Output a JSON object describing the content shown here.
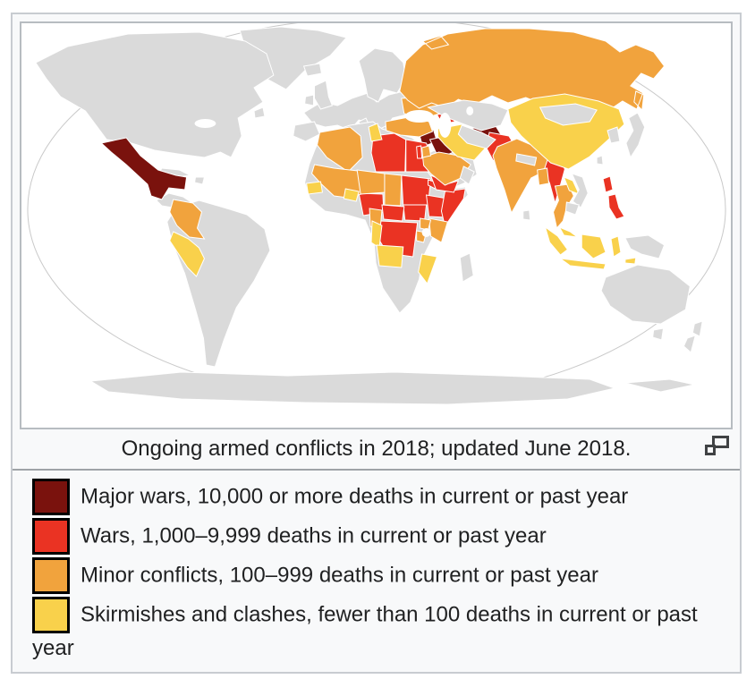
{
  "thumbnail": {
    "border_color": "#c8ccd1",
    "background": "#f8f9fa",
    "caption": "Ongoing armed conflicts in 2018; updated June 2018.",
    "magnify_icon": "expand-thumbnail-icon"
  },
  "map": {
    "description": "World choropleth map of ongoing armed conflicts in 2018",
    "ocean_color": "#ffffff",
    "land_color": "#dadada",
    "country_border_color": "#ffffff",
    "projection_outline_color": "#c9c9c9",
    "categories": {
      "major_wars": {
        "color": "#7a120d"
      },
      "wars": {
        "color": "#ea3323"
      },
      "minor_conflicts": {
        "color": "#f1a33d"
      },
      "skirmishes": {
        "color": "#f9d14b"
      }
    },
    "regions": [
      {
        "key": "mexico",
        "name": "Mexico",
        "category": "major_wars"
      },
      {
        "key": "syria",
        "name": "Syria",
        "category": "major_wars"
      },
      {
        "key": "iraq",
        "name": "Iraq",
        "category": "major_wars"
      },
      {
        "key": "afghanistan",
        "name": "Afghanistan",
        "category": "major_wars"
      },
      {
        "key": "libya",
        "name": "Libya",
        "category": "wars"
      },
      {
        "key": "egypt",
        "name": "Egypt",
        "category": "wars"
      },
      {
        "key": "sudan",
        "name": "Sudan",
        "category": "wars"
      },
      {
        "key": "south_sudan",
        "name": "South Sudan",
        "category": "wars"
      },
      {
        "key": "eritrea",
        "name": "Eritrea",
        "category": "wars"
      },
      {
        "key": "ethiopia",
        "name": "Ethiopia",
        "category": "wars"
      },
      {
        "key": "somalia",
        "name": "Somalia",
        "category": "wars"
      },
      {
        "key": "yemen",
        "name": "Yemen",
        "category": "wars"
      },
      {
        "key": "nigeria",
        "name": "Nigeria",
        "category": "wars"
      },
      {
        "key": "car",
        "name": "Central African Republic",
        "category": "wars"
      },
      {
        "key": "drc",
        "name": "DR Congo",
        "category": "wars"
      },
      {
        "key": "pakistan",
        "name": "Pakistan",
        "category": "wars"
      },
      {
        "key": "myanmar",
        "name": "Myanmar",
        "category": "wars"
      },
      {
        "key": "philippines",
        "name": "Philippines",
        "category": "wars"
      },
      {
        "key": "azerbaijan",
        "name": "Azerbaijan",
        "category": "wars"
      },
      {
        "key": "israel",
        "name": "Israel-Palestine",
        "category": "wars"
      },
      {
        "key": "colombia",
        "name": "Colombia",
        "category": "minor_conflicts"
      },
      {
        "key": "algeria",
        "name": "Algeria",
        "category": "minor_conflicts"
      },
      {
        "key": "mali",
        "name": "Mali",
        "category": "minor_conflicts"
      },
      {
        "key": "niger",
        "name": "Niger",
        "category": "minor_conflicts"
      },
      {
        "key": "chad",
        "name": "Chad",
        "category": "minor_conflicts"
      },
      {
        "key": "cameroon",
        "name": "Cameroon",
        "category": "minor_conflicts"
      },
      {
        "key": "kenya",
        "name": "Kenya",
        "category": "minor_conflicts"
      },
      {
        "key": "uganda",
        "name": "Uganda",
        "category": "minor_conflicts"
      },
      {
        "key": "burundi",
        "name": "Burundi",
        "category": "minor_conflicts"
      },
      {
        "key": "saudi",
        "name": "Saudi Arabia",
        "category": "minor_conflicts"
      },
      {
        "key": "jordan",
        "name": "Jordan",
        "category": "minor_conflicts"
      },
      {
        "key": "turkey",
        "name": "Turkey",
        "category": "minor_conflicts"
      },
      {
        "key": "ukraine",
        "name": "Ukraine",
        "category": "minor_conflicts"
      },
      {
        "key": "russia",
        "name": "Russia",
        "category": "minor_conflicts"
      },
      {
        "key": "india",
        "name": "India",
        "category": "minor_conflicts"
      },
      {
        "key": "bangladesh",
        "name": "Bangladesh",
        "category": "minor_conflicts"
      },
      {
        "key": "thailand",
        "name": "Thailand",
        "category": "minor_conflicts"
      },
      {
        "key": "peru",
        "name": "Peru",
        "category": "skirmishes"
      },
      {
        "key": "senegal",
        "name": "Senegal",
        "category": "skirmishes"
      },
      {
        "key": "burkina",
        "name": "Burkina Faso",
        "category": "skirmishes"
      },
      {
        "key": "tunisia",
        "name": "Tunisia",
        "category": "skirmishes"
      },
      {
        "key": "congo",
        "name": "Congo",
        "category": "skirmishes"
      },
      {
        "key": "angola",
        "name": "Angola",
        "category": "skirmishes"
      },
      {
        "key": "mozambique",
        "name": "Mozambique",
        "category": "skirmishes"
      },
      {
        "key": "iran",
        "name": "Iran",
        "category": "skirmishes"
      },
      {
        "key": "china",
        "name": "China",
        "category": "skirmishes"
      },
      {
        "key": "laos",
        "name": "Laos",
        "category": "skirmishes"
      },
      {
        "key": "malaysia",
        "name": "Malaysia",
        "category": "skirmishes"
      },
      {
        "key": "indonesia",
        "name": "Indonesia",
        "category": "skirmishes"
      }
    ]
  },
  "legend": {
    "items": [
      {
        "label": "Major wars, 10,000 or more deaths in current or past year",
        "color": "#7a120d"
      },
      {
        "label": "Wars, 1,000–9,999 deaths in current or past year",
        "color": "#ea3323"
      },
      {
        "label": "Minor conflicts, 100–999 deaths in current or past year",
        "color": "#f1a33d"
      },
      {
        "label": "Skirmishes and clashes, fewer than 100 deaths in current or past year",
        "color": "#f9d14b"
      }
    ]
  }
}
